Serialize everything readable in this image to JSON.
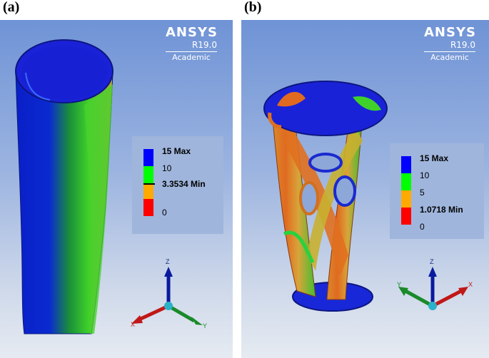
{
  "figure": {
    "panels": [
      {
        "label": "(a)",
        "brand": {
          "name": "ANSYS",
          "version": "R19.0",
          "edition": "Academic"
        },
        "legend": {
          "bands": [
            "#0000ff",
            "#00ff00",
            "#ffaa00",
            "#ff0000"
          ],
          "labels": [
            "15 Max",
            "10",
            "3.3534 Min",
            "0"
          ]
        },
        "triad": {
          "z": "Z",
          "x": "X",
          "y": "Y"
        }
      },
      {
        "label": "(b)",
        "brand": {
          "name": "ANSYS",
          "version": "R19.0",
          "edition": "Academic"
        },
        "legend": {
          "bands": [
            "#0000ff",
            "#00ff00",
            "#ffaa00",
            "#ff0000"
          ],
          "labels": [
            "15 Max",
            "10",
            "5",
            "1.0718 Min",
            "0"
          ]
        },
        "triad": {
          "z": "Z",
          "x": "X",
          "y": "Y"
        }
      }
    ]
  }
}
